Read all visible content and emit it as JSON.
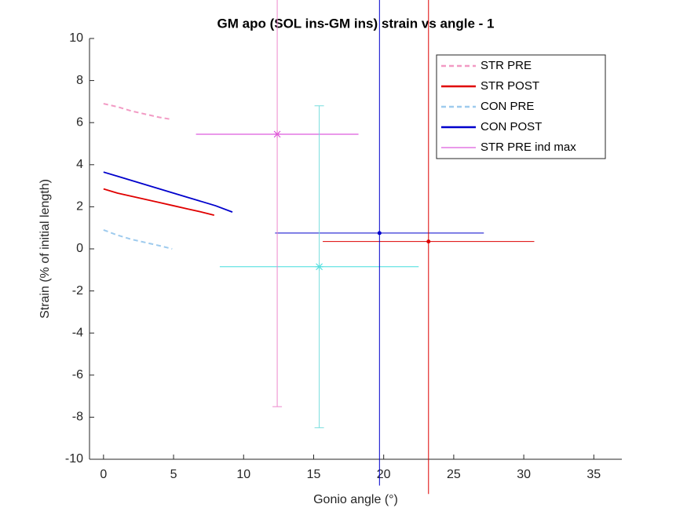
{
  "chart_data": {
    "type": "line",
    "title": "GM apo (SOL ins-GM ins) strain vs angle - 1",
    "xlabel": "Gonio angle (°)",
    "ylabel": "Strain (% of initial length)",
    "xlim": [
      -1,
      37
    ],
    "ylim": [
      -10,
      10
    ],
    "xticks": [
      0,
      5,
      10,
      15,
      20,
      25,
      30,
      35
    ],
    "yticks": [
      -10,
      -8,
      -6,
      -4,
      -2,
      0,
      2,
      4,
      6,
      8,
      10
    ],
    "legend": "upper right",
    "series": [
      {
        "name": "STR PRE",
        "color": "#f29ac4",
        "dashed": true,
        "x": [
          0,
          1,
          2,
          3,
          4,
          4.9
        ],
        "values": [
          6.9,
          6.75,
          6.55,
          6.4,
          6.25,
          6.15
        ]
      },
      {
        "name": "STR POST",
        "color": "#e00000",
        "dashed": false,
        "x": [
          0,
          1,
          2,
          3,
          4,
          5,
          6,
          7,
          7.9
        ],
        "values": [
          2.85,
          2.65,
          2.5,
          2.35,
          2.2,
          2.05,
          1.9,
          1.75,
          1.6
        ]
      },
      {
        "name": "CON PRE",
        "color": "#9ecbee",
        "dashed": true,
        "x": [
          0,
          1,
          2,
          3,
          4,
          4.9
        ],
        "values": [
          0.9,
          0.65,
          0.45,
          0.3,
          0.15,
          0.0
        ]
      },
      {
        "name": "CON POST",
        "color": "#0000cc",
        "dashed": false,
        "x": [
          0,
          1,
          2,
          3,
          4,
          5,
          6,
          7,
          8,
          9.2
        ],
        "values": [
          3.65,
          3.45,
          3.25,
          3.05,
          2.85,
          2.65,
          2.45,
          2.25,
          2.05,
          1.75
        ]
      }
    ],
    "errorbars": [
      {
        "name": "STR PRE ind max",
        "color": "#d633d6",
        "vcolor": "#ee88cc",
        "marker": "star",
        "x": 12.4,
        "y": 5.45,
        "xerr": 5.8,
        "yerr": 12.95
      },
      {
        "color": "#44dddd",
        "vcolor": "#77dddd",
        "marker": "star",
        "x": 15.4,
        "y": -0.85,
        "xerr": 7.1,
        "yerr": 7.65
      },
      {
        "color": "#0000cc",
        "vcolor": "#0000cc",
        "marker": "dot",
        "x": 19.7,
        "y": 0.75,
        "xerr": 7.45,
        "yerr": 12
      },
      {
        "color": "#dd0000",
        "vcolor": "#dd0000",
        "marker": "dot",
        "x": 23.2,
        "y": 0.35,
        "xerr": 7.55,
        "yerr": 12
      }
    ]
  }
}
